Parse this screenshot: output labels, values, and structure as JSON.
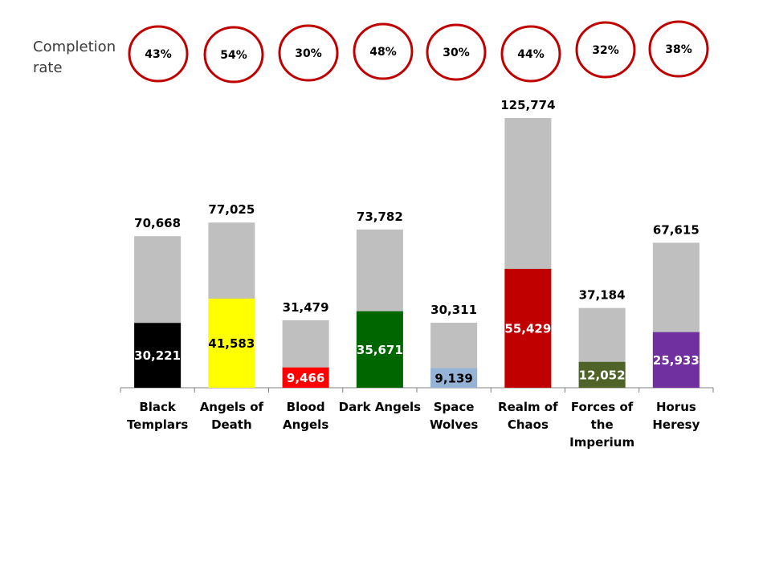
{
  "completion_label": {
    "line1": "Completion",
    "line2": "rate"
  },
  "colors": {
    "total_bar": "#bfbfbf",
    "axis": "#808080",
    "circle_stroke": "#c00000",
    "text": "#000000"
  },
  "chart_data": {
    "type": "bar",
    "stacking": "overlay",
    "ylim": [
      0,
      140000
    ],
    "categories": [
      [
        "Black",
        "Templars"
      ],
      [
        "Angels of",
        "Death"
      ],
      [
        "Blood",
        "Angels"
      ],
      [
        "Dark Angels"
      ],
      [
        "Space",
        "Wolves"
      ],
      [
        "Realm of",
        "Chaos"
      ],
      [
        "Forces of",
        "the",
        "Imperium"
      ],
      [
        "Horus",
        "Heresy"
      ]
    ],
    "series": [
      {
        "values": [
          70668,
          77025,
          31479,
          73782,
          30311,
          125774,
          37184,
          67615
        ]
      },
      {
        "values": [
          30221,
          41583,
          9466,
          35671,
          9139,
          55429,
          12052,
          25933
        ]
      }
    ],
    "total_labels": [
      "70,668",
      "77,025",
      "31,479",
      "73,782",
      "30,311",
      "125,774",
      "37,184",
      "67,615"
    ],
    "completed_labels": [
      "30,221",
      "41,583",
      "9,466",
      "35,671",
      "9,139",
      "55,429",
      "12,052",
      "25,933"
    ],
    "completed_colors": [
      "#000000",
      "#ffff00",
      "#ff0000",
      "#006600",
      "#95b3d7",
      "#c00000",
      "#4f6228",
      "#7030a0"
    ],
    "completed_label_colors": [
      "#ffffff",
      "#000000",
      "#ffffff",
      "#ffffff",
      "#000000",
      "#ffffff",
      "#ffffff",
      "#ffffff"
    ],
    "completion_rates": [
      "43%",
      "54%",
      "30%",
      "48%",
      "30%",
      "44%",
      "32%",
      "38%"
    ]
  }
}
